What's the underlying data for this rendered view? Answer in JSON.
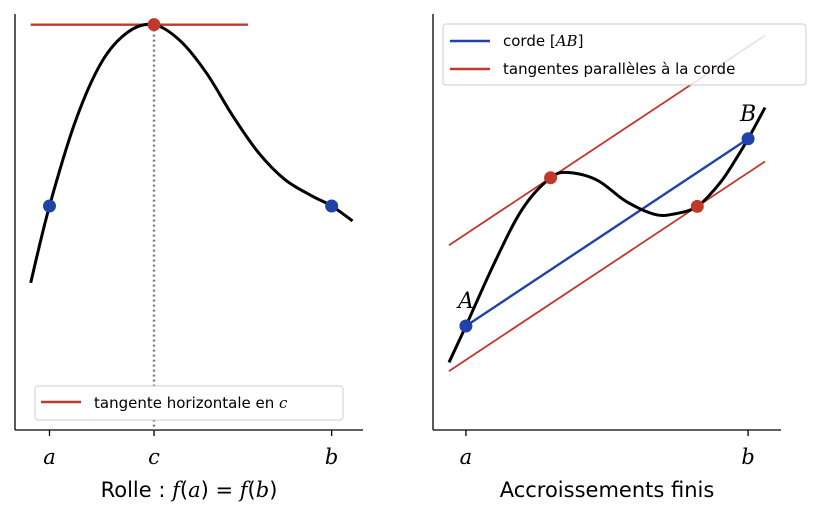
{
  "chart_data": [
    {
      "type": "line",
      "xlabel": "Rolle : f(a) = f(b)",
      "xlabel_parts": {
        "prefix": "Rolle : ",
        "lhs": "f",
        "lhs_arg": "a",
        "eq": " = ",
        "rhs": "f",
        "rhs_arg": "b"
      },
      "xticks": [
        {
          "label": "a",
          "x": 0.0
        },
        {
          "label": "c",
          "x": 1.0
        },
        {
          "label": "b",
          "x": 2.7
        }
      ],
      "xlim": [
        -0.33,
        3.0
      ],
      "ylim": [
        -0.9,
        3.0
      ],
      "curve_points": [
        [
          -0.18,
          0.48
        ],
        [
          0.0,
          1.2
        ],
        [
          0.25,
          2.0
        ],
        [
          0.5,
          2.55
        ],
        [
          0.75,
          2.83
        ],
        [
          1.0,
          2.9
        ],
        [
          1.25,
          2.75
        ],
        [
          1.5,
          2.45
        ],
        [
          1.75,
          2.05
        ],
        [
          2.0,
          1.7
        ],
        [
          2.25,
          1.45
        ],
        [
          2.5,
          1.3
        ],
        [
          2.7,
          1.2
        ],
        [
          2.9,
          1.06
        ]
      ],
      "points": [
        {
          "name": "a",
          "x": 0.0,
          "y": 1.2,
          "color": "#2142a8"
        },
        {
          "name": "c",
          "x": 1.0,
          "y": 2.9,
          "color": "#c0392b"
        },
        {
          "name": "b",
          "x": 2.7,
          "y": 1.2,
          "color": "#2142a8"
        }
      ],
      "horizontal_tangent": {
        "y": 2.9,
        "x_from": -0.18,
        "x_to": 1.9,
        "color": "#c0392b"
      },
      "dotted_vertical": {
        "x": 1.0,
        "color": "#777777"
      },
      "legend": {
        "position": "bottom",
        "entries": [
          {
            "label": "tangente horizontale en ",
            "math": "c",
            "color": "#c0392b"
          }
        ]
      },
      "grid": false
    },
    {
      "type": "line",
      "xlabel": "Accroissements finis",
      "xticks": [
        {
          "label": "a",
          "x": 0.0
        },
        {
          "label": "b",
          "x": 3.0
        }
      ],
      "xlim": [
        -0.35,
        3.35
      ],
      "ylim": [
        -2.0,
        6.0
      ],
      "curve_points": [
        [
          -0.18,
          -0.7
        ],
        [
          0.0,
          0.0
        ],
        [
          0.3,
          1.2
        ],
        [
          0.6,
          2.25
        ],
        [
          0.9,
          2.85
        ],
        [
          1.1,
          2.95
        ],
        [
          1.4,
          2.8
        ],
        [
          1.7,
          2.4
        ],
        [
          2.0,
          2.15
        ],
        [
          2.2,
          2.15
        ],
        [
          2.46,
          2.3
        ],
        [
          2.7,
          2.75
        ],
        [
          2.85,
          3.15
        ],
        [
          3.0,
          3.6
        ],
        [
          3.18,
          4.2
        ]
      ],
      "points": [
        {
          "name": "A",
          "x": 0.0,
          "y": 0.0,
          "color": "#2142a8"
        },
        {
          "name": "B",
          "x": 3.0,
          "y": 3.6,
          "color": "#2142a8"
        },
        {
          "name": "t1",
          "x": 0.9,
          "y": 2.85,
          "color": "#c0392b"
        },
        {
          "name": "t2",
          "x": 2.46,
          "y": 2.3,
          "color": "#c0392b"
        }
      ],
      "point_labels": [
        {
          "text": "A",
          "anchor": "A"
        },
        {
          "text": "B",
          "anchor": "B"
        }
      ],
      "chord": {
        "from": [
          0.0,
          0.0
        ],
        "to": [
          3.0,
          3.6
        ],
        "color": "#2142a8"
      },
      "parallel_tangents": [
        {
          "through": [
            0.9,
            2.85
          ],
          "slope": 1.2,
          "x_from": -0.18,
          "x_to": 3.18
        },
        {
          "through": [
            2.46,
            2.3
          ],
          "slope": 1.2,
          "x_from": -0.18,
          "x_to": 3.18
        }
      ],
      "legend": {
        "position": "top-left",
        "entries": [
          {
            "label": "corde [",
            "math": "AB",
            "suffix": "]",
            "color": "#2142a8"
          },
          {
            "label": "tangentes parallèles à la corde",
            "color": "#c0392b"
          }
        ]
      },
      "grid": false
    }
  ]
}
